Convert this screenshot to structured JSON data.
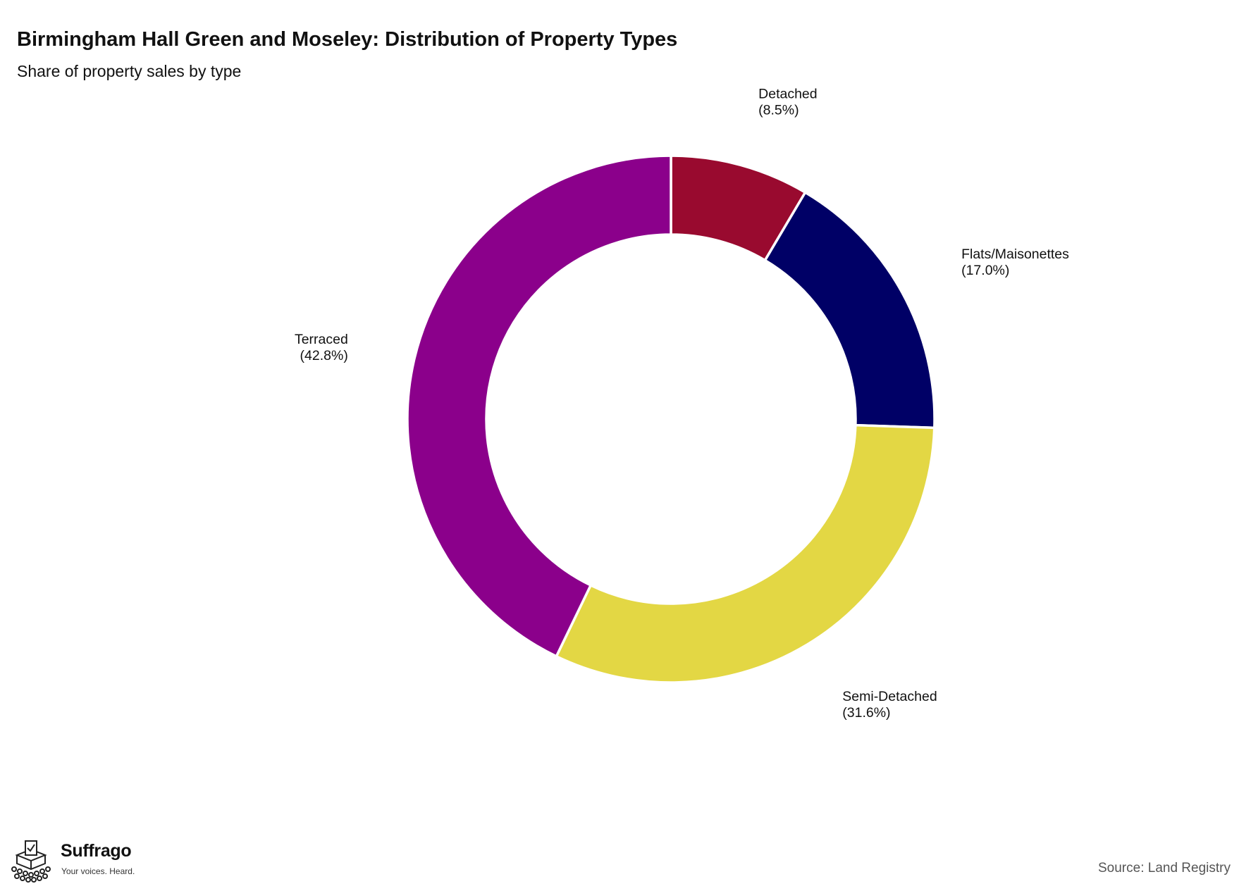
{
  "header": {
    "title": "Birmingham Hall Green and Moseley: Distribution of Property Types",
    "subtitle": "Share of property sales by type"
  },
  "chart_data": {
    "type": "pie",
    "variant": "donut",
    "title": "Birmingham Hall Green and Moseley: Distribution of Property Types",
    "subtitle": "Share of property sales by type",
    "start": "12 o'clock",
    "direction": "clockwise",
    "slices": [
      {
        "label": "Detached",
        "value_label": "(8.5%)",
        "value": 8.5,
        "color": "#990a2f"
      },
      {
        "label": "Flats/Maisonettes",
        "value_label": "(17.0%)",
        "value": 17.0,
        "color": "#000066"
      },
      {
        "label": "Semi-Detached",
        "value_label": "(31.6%)",
        "value": 31.6,
        "color": "#e3d744"
      },
      {
        "label": "Terraced",
        "value_label": "(42.8%)",
        "value": 42.8,
        "color": "#8b008b"
      }
    ],
    "legend": "none"
  },
  "footer": {
    "brand_name": "Suffrago",
    "brand_tagline": "Your voices. Heard.",
    "logo_icon": "ballot-box-crowd-icon",
    "source": "Source: Land Registry"
  }
}
